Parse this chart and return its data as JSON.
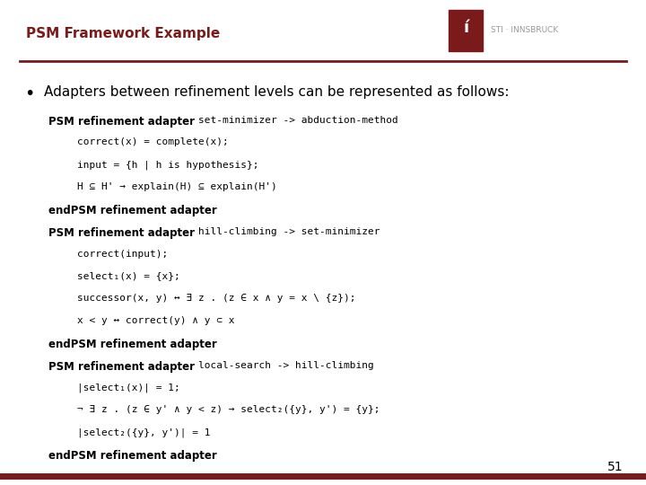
{
  "title": "PSM Framework Example",
  "title_color": "#7B1A1A",
  "title_fontsize": 11,
  "bg_color": "#FFFFFF",
  "bullet_text": "Adapters between refinement levels can be represented as follows:",
  "bullet_fontsize": 11,
  "logo_color": "#7B1A1A",
  "sti_text": "STI · INNSBRUCK",
  "page_number": "51",
  "separator_color": "#7B1A1A",
  "body_lines": [
    {
      "text": "PSM refinement adapter set-minimizer -> abduction-method",
      "indent": 0,
      "style": "mixed",
      "bold_prefix": "PSM refinement adapter ",
      "mono_suffix": "set-minimizer -> abduction-method"
    },
    {
      "text": "correct(x) = complete(x);",
      "indent": 1,
      "style": "mono"
    },
    {
      "text": "input = {h | h is hypothesis};",
      "indent": 1,
      "style": "mono"
    },
    {
      "text": "H ⊆ H' → explain(H) ⊆ explain(H')",
      "indent": 1,
      "style": "mono"
    },
    {
      "text": "endPSM refinement adapter",
      "indent": 0,
      "style": "bold"
    },
    {
      "text": "PSM refinement adapter hill-climbing -> set-minimizer",
      "indent": 0,
      "style": "mixed",
      "bold_prefix": "PSM refinement adapter ",
      "mono_suffix": "hill-climbing -> set-minimizer"
    },
    {
      "text": "correct(input);",
      "indent": 1,
      "style": "mono"
    },
    {
      "text": "select₁(x) = {x};",
      "indent": 1,
      "style": "mono"
    },
    {
      "text": "successor(x, y) ↔ ∃ z . (z ∈ x ∧ y = x \\ {z});",
      "indent": 1,
      "style": "mono"
    },
    {
      "text": "x < y ↔ correct(y) ∧ y ⊂ x",
      "indent": 1,
      "style": "mono"
    },
    {
      "text": "endPSM refinement adapter",
      "indent": 0,
      "style": "bold"
    },
    {
      "text": "PSM refinement adapter local-search -> hill-climbing",
      "indent": 0,
      "style": "mixed",
      "bold_prefix": "PSM refinement adapter ",
      "mono_suffix": "local-search -> hill-climbing"
    },
    {
      "text": "|select₁(x)| = 1;",
      "indent": 1,
      "style": "mono"
    },
    {
      "text": "¬ ∃ z . (z ∈ y' ∧ y < z) → select₂({y}, y') = {y};",
      "indent": 1,
      "style": "mono"
    },
    {
      "text": "|select₂({y}, y')| = 1",
      "indent": 1,
      "style": "mono"
    },
    {
      "text": "endPSM refinement adapter",
      "indent": 0,
      "style": "bold"
    }
  ],
  "body_fontsize": 8.5,
  "mono_fontsize": 8.0,
  "text_color": "#000000"
}
